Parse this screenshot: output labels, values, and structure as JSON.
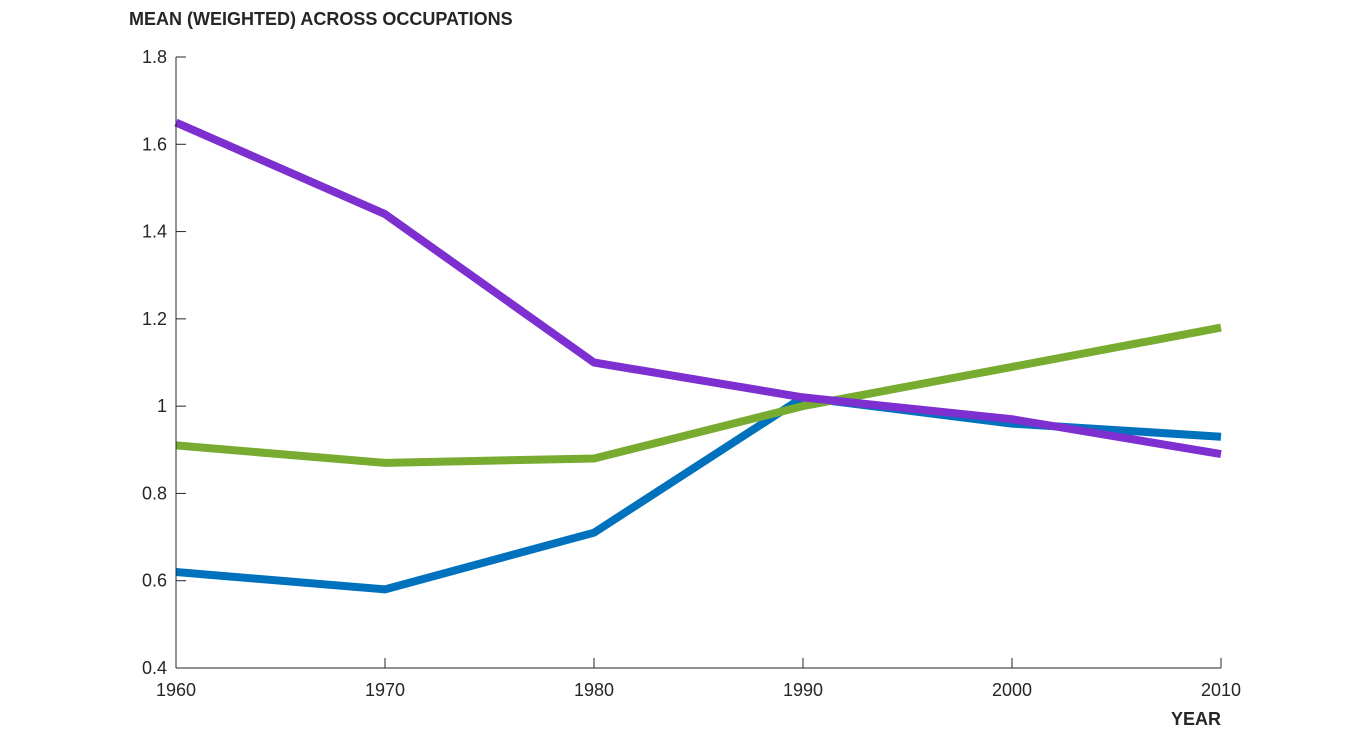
{
  "chart_data": {
    "type": "line",
    "title": "",
    "ylabel": "MEAN (WEIGHTED) ACROSS OCCUPATIONS",
    "xlabel": "YEAR",
    "x": [
      1960,
      1970,
      1980,
      1990,
      2000,
      2010
    ],
    "xlim": [
      1960,
      2010
    ],
    "ylim": [
      0.4,
      1.8
    ],
    "xticks": [
      1960,
      1970,
      1980,
      1990,
      2000,
      2010
    ],
    "xtick_labels": [
      "1960",
      "1970",
      "1980",
      "1990",
      "2000",
      "2010"
    ],
    "yticks": [
      0.4,
      0.6,
      0.8,
      1.0,
      1.2,
      1.4,
      1.6,
      1.8
    ],
    "ytick_labels": [
      "0.4",
      "0.6",
      "0.8",
      "1",
      "1.2",
      "1.4",
      "1.6",
      "1.8"
    ],
    "grid": false,
    "legend": "none",
    "series": [
      {
        "name": "blue series",
        "color": "#0072BD",
        "values": [
          0.62,
          0.58,
          0.71,
          1.02,
          0.96,
          0.93
        ]
      },
      {
        "name": "green series",
        "color": "#77AC30",
        "values": [
          0.91,
          0.87,
          0.88,
          1.0,
          1.09,
          1.18
        ]
      },
      {
        "name": "purple series",
        "color": "#7E2FD0",
        "values": [
          1.65,
          1.44,
          1.1,
          1.02,
          0.97,
          0.89
        ]
      }
    ]
  }
}
